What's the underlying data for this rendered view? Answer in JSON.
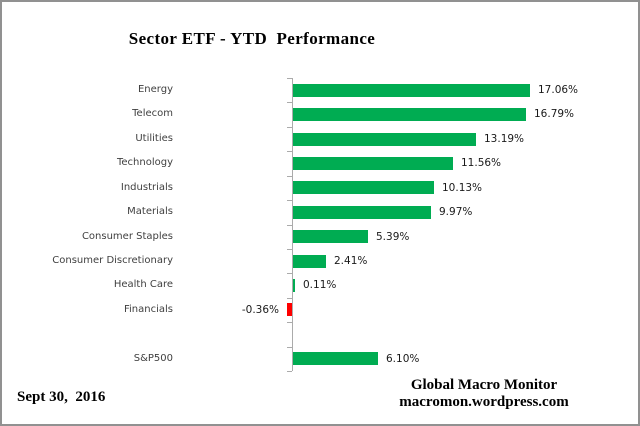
{
  "title": "Sector ETF - YTD  Performance",
  "footer": {
    "date": "Sept 30,  2016",
    "credit_line1": "Global Macro Monitor",
    "credit_line2": "macromon.wordpress.com"
  },
  "colors": {
    "positive_bar": "#00ac52",
    "negative_bar": "#fe0000",
    "axis": "#ababab"
  },
  "chart_data": {
    "type": "bar",
    "orientation": "horizontal",
    "title": "Sector ETF - YTD  Performance",
    "categories": [
      "Energy",
      "Telecom",
      "Utilities",
      "Technology",
      "Industrials",
      "Materials",
      "Consumer Staples",
      "Consumer Discretionary",
      "Health Care",
      "Financials",
      "",
      "S&P500"
    ],
    "values": [
      17.06,
      16.79,
      13.19,
      11.56,
      10.13,
      9.97,
      5.39,
      2.41,
      0.11,
      -0.36,
      null,
      6.1
    ],
    "value_labels": [
      "17.06%",
      "16.79%",
      "13.19%",
      "11.56%",
      "10.13%",
      "9.97%",
      "5.39%",
      "2.41%",
      "0.11%",
      "-0.36%",
      "",
      "6.10%"
    ],
    "xlabel": "",
    "ylabel": "",
    "xlim": [
      -1,
      18
    ],
    "grid": false,
    "legend": false,
    "notes": "green bars for positive values, red bar for negative value; value labels at bar ends"
  }
}
